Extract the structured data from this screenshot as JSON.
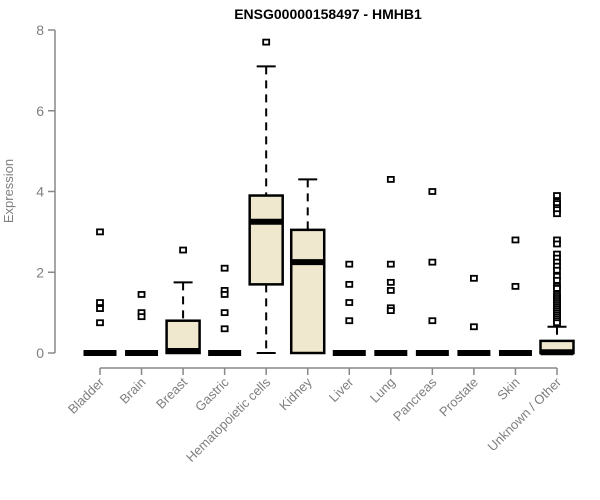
{
  "chart_data": {
    "type": "boxplot",
    "title": "ENSG00000158497 - HMHB1",
    "ylabel": "Expression",
    "xlabel": "",
    "ylim": [
      0,
      8
    ],
    "yticks": [
      0,
      2,
      4,
      6,
      8
    ],
    "grid": false,
    "legend": "none",
    "categories": [
      "Bladder",
      "Brain",
      "Breast",
      "Gastric",
      "Hematopoietic cells",
      "Kidney",
      "Liver",
      "Lung",
      "Pancreas",
      "Prostate",
      "Skin",
      "Unknown / Other"
    ],
    "boxes": [
      {
        "category": "Bladder",
        "low": 0,
        "q1": 0,
        "median": 0,
        "q3": 0,
        "high": 0,
        "outliers": [
          3.0,
          1.25,
          1.1,
          0.75
        ]
      },
      {
        "category": "Brain",
        "low": 0,
        "q1": 0,
        "median": 0,
        "q3": 0,
        "high": 0,
        "outliers": [
          1.45,
          1.0,
          0.9
        ]
      },
      {
        "category": "Breast",
        "low": 0,
        "q1": 0,
        "median": 0.05,
        "q3": 0.8,
        "high": 1.75,
        "outliers": [
          2.55
        ]
      },
      {
        "category": "Gastric",
        "low": 0,
        "q1": 0,
        "median": 0,
        "q3": 0,
        "high": 0,
        "outliers": [
          2.1,
          1.55,
          1.45,
          1.0,
          0.6
        ]
      },
      {
        "category": "Hematopoietic cells",
        "low": 0,
        "q1": 1.7,
        "median": 3.25,
        "q3": 3.9,
        "high": 7.1,
        "outliers": [
          7.7
        ]
      },
      {
        "category": "Kidney",
        "low": 0,
        "q1": 0,
        "median": 2.25,
        "q3": 3.05,
        "high": 4.3,
        "outliers": []
      },
      {
        "category": "Liver",
        "low": 0,
        "q1": 0,
        "median": 0,
        "q3": 0,
        "high": 0,
        "outliers": [
          2.2,
          1.7,
          1.25,
          0.8
        ]
      },
      {
        "category": "Lung",
        "low": 0,
        "q1": 0,
        "median": 0,
        "q3": 0,
        "high": 0,
        "outliers": [
          4.3,
          2.2,
          1.75,
          1.55,
          1.12,
          1.05
        ]
      },
      {
        "category": "Pancreas",
        "low": 0,
        "q1": 0,
        "median": 0,
        "q3": 0,
        "high": 0,
        "outliers": [
          4.0,
          2.25,
          0.8
        ]
      },
      {
        "category": "Prostate",
        "low": 0,
        "q1": 0,
        "median": 0,
        "q3": 0,
        "high": 0,
        "outliers": [
          1.85,
          0.65
        ]
      },
      {
        "category": "Skin",
        "low": 0,
        "q1": 0,
        "median": 0,
        "q3": 0,
        "high": 0,
        "outliers": [
          2.8,
          1.65
        ]
      },
      {
        "category": "Unknown / Other",
        "low": 0,
        "q1": 0,
        "median": 0.02,
        "q3": 0.3,
        "high": 0.65,
        "outliers": [
          3.9,
          3.75,
          3.7,
          3.6,
          3.55,
          3.45,
          2.8,
          2.7,
          2.45,
          2.35,
          2.25,
          2.15,
          2.05,
          1.9,
          1.8,
          1.65,
          1.6,
          1.45,
          1.4,
          1.35,
          1.3,
          1.25,
          1.2,
          1.15,
          1.1,
          1.05,
          1.0,
          0.95,
          0.9,
          0.85,
          0.8,
          0.75
        ]
      }
    ],
    "colors": {
      "box_fill": "#EFE7CE",
      "box_border": "#000000",
      "median": "#000000",
      "whisker": "#000000",
      "outlier": "#000000",
      "axis": "#888888",
      "tick_label": "#7f7f7f",
      "title": "#000000",
      "background": "#ffffff"
    }
  }
}
